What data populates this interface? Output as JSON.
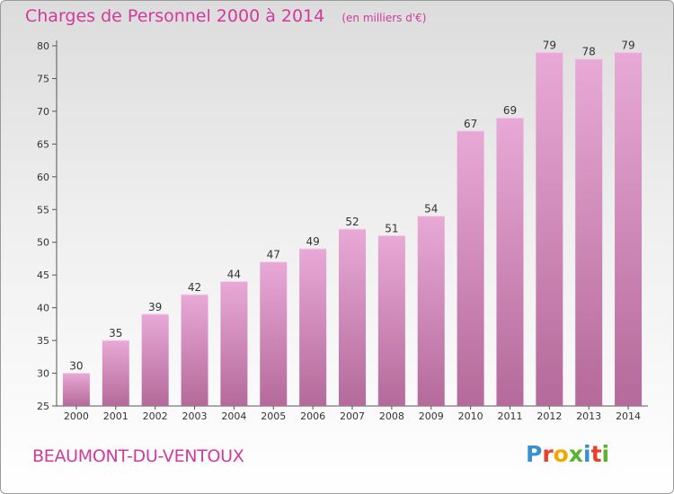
{
  "header": {
    "title": "Charges de Personnel 2000 à 2014",
    "subtitle": "(en milliers d'€)"
  },
  "footer": {
    "commune": "BEAUMONT-DU-VENTOUX",
    "logo_text": "Proxiti",
    "logo_colors": [
      "#3a8fd1",
      "#e8402a",
      "#f2a700",
      "#58b32f",
      "#3a8fd1",
      "#e8402a",
      "#58b32f"
    ]
  },
  "colors": {
    "bar_top": "#e8a9d6",
    "bar_bottom": "#b46a9a",
    "text": "#d13a9b",
    "axis": "#555555"
  },
  "chart_data": {
    "type": "bar",
    "categories": [
      "2000",
      "2001",
      "2002",
      "2003",
      "2004",
      "2005",
      "2006",
      "2007",
      "2008",
      "2009",
      "2010",
      "2011",
      "2012",
      "2013",
      "2014"
    ],
    "values": [
      30,
      35,
      39,
      42,
      44,
      47,
      49,
      52,
      51,
      54,
      67,
      69,
      79,
      78,
      79
    ],
    "title": "Charges de Personnel 2000 à 2014",
    "ylim": [
      25,
      80
    ],
    "yticks": [
      25,
      30,
      35,
      40,
      45,
      50,
      55,
      60,
      65,
      70,
      75,
      80
    ],
    "grid": false
  }
}
